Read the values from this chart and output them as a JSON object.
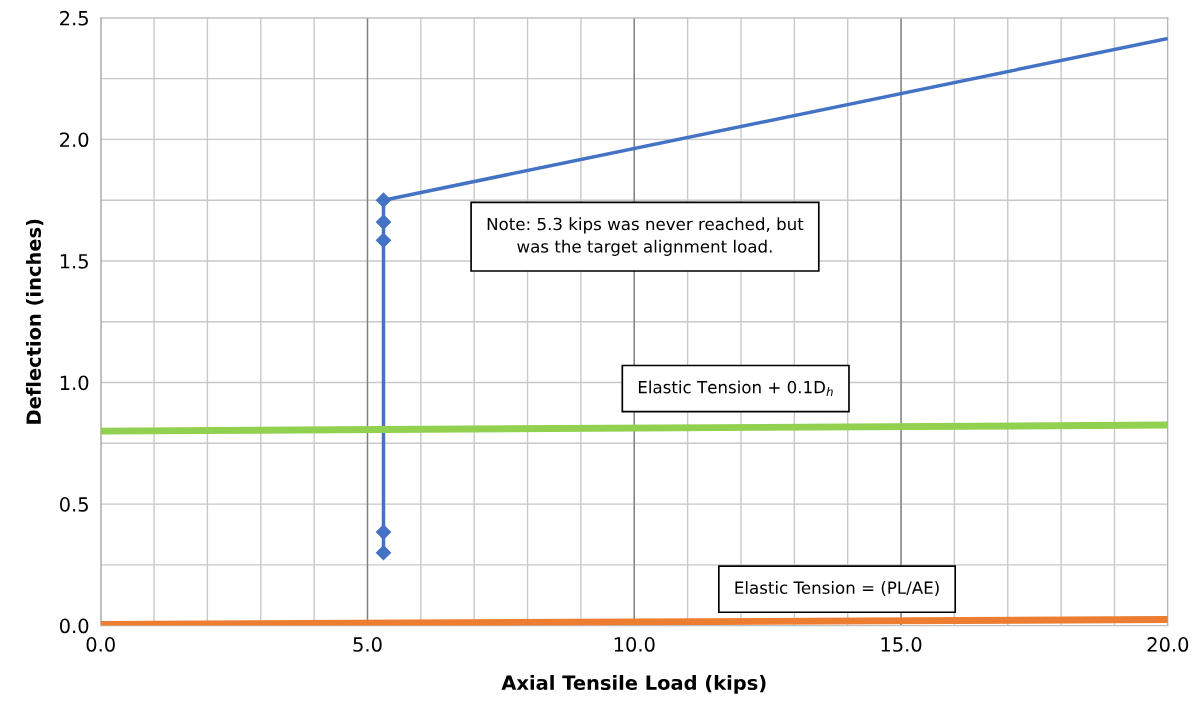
{
  "chart_data": {
    "type": "line",
    "xlabel": "Axial Tensile Load (kips)",
    "ylabel": "Deflection (inches)",
    "series": [
      {
        "color": "#4472c4",
        "x": [
          5.3,
          5.3,
          5.3,
          5.3,
          5.3
        ],
        "values": [
          0.3,
          0.385,
          1.585,
          1.66,
          1.75
        ],
        "marker": "diamond"
      },
      {
        "color": "#4472c4",
        "x": [
          5.3,
          20.0
        ],
        "values": [
          1.75,
          2.415
        ],
        "marker": "none"
      },
      {
        "color": "#92d050",
        "x": [
          0.0,
          20.0
        ],
        "values": [
          0.8,
          0.825
        ],
        "marker": "none"
      },
      {
        "color": "#ed7d31",
        "x": [
          0.0,
          20.0
        ],
        "values": [
          0.005,
          0.025
        ],
        "marker": "none"
      }
    ],
    "xlim": [
      0,
      20
    ],
    "ylim": [
      0,
      2.5
    ],
    "xticks": [
      {
        "value": 0,
        "label": "0.0"
      },
      {
        "value": 1,
        "label": null
      },
      {
        "value": 2,
        "label": null
      },
      {
        "value": 3,
        "label": null
      },
      {
        "value": 4,
        "label": null
      },
      {
        "value": 5,
        "label": "5.0"
      },
      {
        "value": 6,
        "label": null
      },
      {
        "value": 7,
        "label": null
      },
      {
        "value": 8,
        "label": null
      },
      {
        "value": 9,
        "label": null
      },
      {
        "value": 10,
        "label": "10.0"
      },
      {
        "value": 11,
        "label": null
      },
      {
        "value": 12,
        "label": null
      },
      {
        "value": 13,
        "label": null
      },
      {
        "value": 14,
        "label": null
      },
      {
        "value": 15,
        "label": "15.0"
      },
      {
        "value": 16,
        "label": null
      },
      {
        "value": 17,
        "label": null
      },
      {
        "value": 18,
        "label": null
      },
      {
        "value": 19,
        "label": null
      },
      {
        "value": 20,
        "label": "20.0"
      }
    ],
    "yticks": [
      {
        "value": 0,
        "label": "0.0"
      },
      {
        "value": 0.25,
        "label": null
      },
      {
        "value": 0.5,
        "label": "0.5"
      },
      {
        "value": 0.75,
        "label": null
      },
      {
        "value": 1.0,
        "label": "1.0"
      },
      {
        "value": 1.25,
        "label": null
      },
      {
        "value": 1.5,
        "label": "1.5"
      },
      {
        "value": 1.75,
        "label": null
      },
      {
        "value": 2.0,
        "label": "2.0"
      },
      {
        "value": 2.25,
        "label": null
      },
      {
        "value": 2.5,
        "label": "2.5"
      }
    ],
    "grid": true,
    "legend": false,
    "annotations": [
      "Note: 5.3 kips was never reached, but\nwas the target alignment load.",
      "Elastic Tension + 0.1D$_{h}$",
      "Elastic Tension = (PL/AE)"
    ]
  }
}
